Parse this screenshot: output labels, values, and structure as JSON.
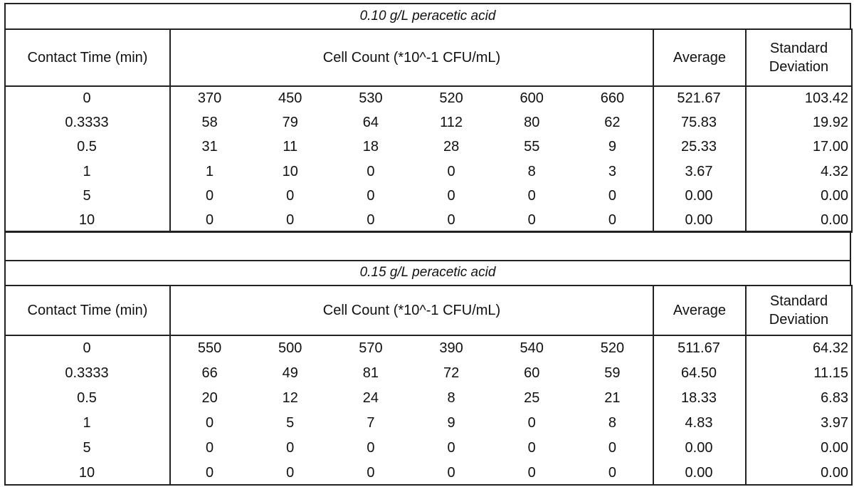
{
  "tables": [
    {
      "title": "0.10 g/L peracetic acid",
      "headers": [
        "Contact Time (min)",
        "Cell Count (*10^-1 CFU/mL)",
        "Average",
        "Standard Deviation"
      ],
      "rows": [
        [
          "0",
          "370",
          "450",
          "530",
          "520",
          "600",
          "660",
          "521.67",
          "103.42"
        ],
        [
          "0.3333",
          "58",
          "79",
          "64",
          "112",
          "80",
          "62",
          "75.83",
          "19.92"
        ],
        [
          "0.5",
          "31",
          "11",
          "18",
          "28",
          "55",
          "9",
          "25.33",
          "17.00"
        ],
        [
          "1",
          "1",
          "10",
          "0",
          "0",
          "8",
          "3",
          "3.67",
          "4.32"
        ],
        [
          "5",
          "0",
          "0",
          "0",
          "0",
          "0",
          "0",
          "0.00",
          "0.00"
        ],
        [
          "10",
          "0",
          "0",
          "0",
          "0",
          "0",
          "0",
          "0.00",
          "0.00"
        ]
      ]
    },
    {
      "title": "0.15 g/L peracetic acid",
      "headers": [
        "Contact Time (min)",
        "Cell Count (*10^-1 CFU/mL)",
        "Average",
        "Standard Deviation"
      ],
      "rows": [
        [
          "0",
          "550",
          "500",
          "570",
          "390",
          "540",
          "520",
          "511.67",
          "64.32"
        ],
        [
          "0.3333",
          "66",
          "49",
          "81",
          "72",
          "60",
          "59",
          "64.50",
          "11.15"
        ],
        [
          "0.5",
          "20",
          "12",
          "24",
          "8",
          "25",
          "21",
          "18.33",
          "6.83"
        ],
        [
          "1",
          "0",
          "5",
          "7",
          "9",
          "0",
          "8",
          "4.83",
          "3.97"
        ],
        [
          "5",
          "0",
          "0",
          "0",
          "0",
          "0",
          "0",
          "0.00",
          "0.00"
        ],
        [
          "10",
          "0",
          "0",
          "0",
          "0",
          "0",
          "0",
          "0.00",
          "0.00"
        ]
      ]
    }
  ]
}
